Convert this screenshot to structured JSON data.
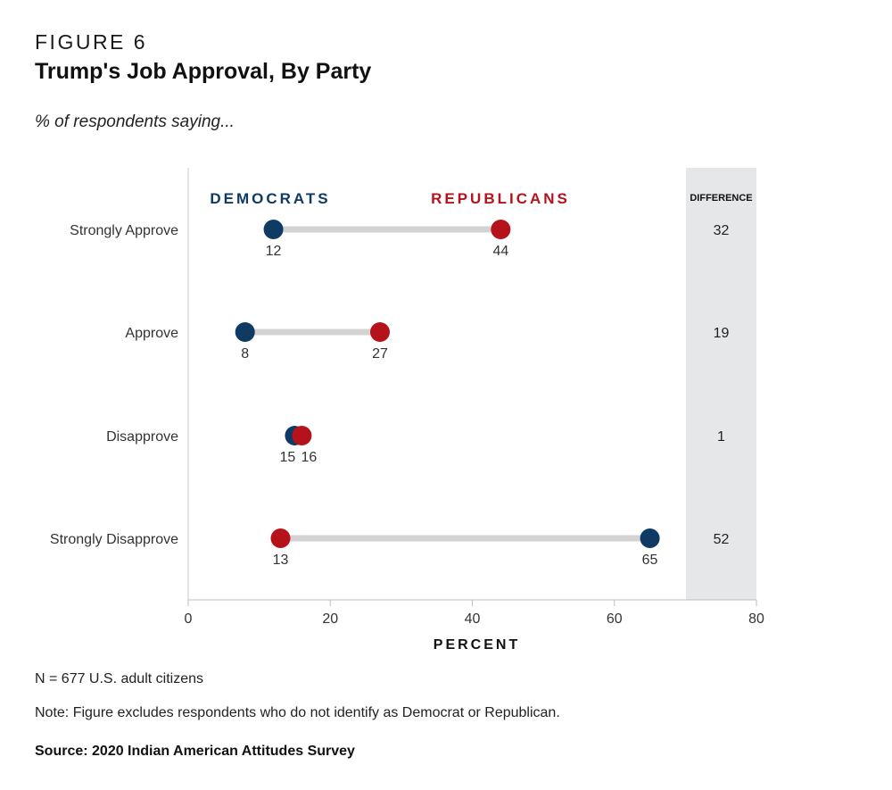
{
  "header": {
    "figure_label": "FIGURE 6",
    "title": "Trump's Job Approval, By Party",
    "subtitle": "% of respondents saying..."
  },
  "chart_data": {
    "type": "dumbbell",
    "xlabel": "PERCENT",
    "xlim": [
      0,
      80
    ],
    "xticks": [
      0,
      20,
      40,
      60,
      80
    ],
    "categories": [
      "Strongly Approve",
      "Approve",
      "Disapprove",
      "Strongly Disapprove"
    ],
    "series": [
      {
        "name": "DEMOCRATS",
        "color": "#0e3a63",
        "values": [
          12,
          8,
          15,
          65
        ]
      },
      {
        "name": "REPUBLICANS",
        "color": "#b5121b",
        "values": [
          44,
          27,
          16,
          13
        ]
      }
    ],
    "difference_label": "DIFFERENCE",
    "difference": [
      32,
      19,
      1,
      52
    ],
    "connector_color": "#d3d3d3",
    "difference_band_color": "#e6e7e8"
  },
  "footer": {
    "n_note": "N = 677 U.S. adult citizens",
    "exclusion_note": "Note: Figure excludes respondents who do not identify as Democrat or Republican.",
    "source": "Source: 2020 Indian American Attitudes Survey"
  }
}
